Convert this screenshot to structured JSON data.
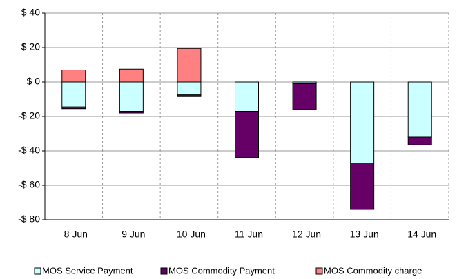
{
  "chart_data": {
    "type": "stacked_bar",
    "categories": [
      "8 Jun",
      "9 Jun",
      "10 Jun",
      "11 Jun",
      "12 Jun",
      "13 Jun",
      "14 Jun"
    ],
    "series": [
      {
        "name": "MOS Service Payment",
        "color": "#ccffff",
        "values": [
          -14.5,
          -17,
          -7.5,
          -17,
          -1,
          -47,
          -32
        ]
      },
      {
        "name": "MOS Commodity Payment",
        "color": "#660066",
        "values": [
          -1,
          -1,
          -1,
          -27,
          -15,
          -27,
          -4.5
        ]
      },
      {
        "name": "MOS Commodity charge",
        "color": "#ff8080",
        "values": [
          7,
          7.5,
          19.5,
          0,
          0,
          0,
          0
        ]
      }
    ],
    "ylim": [
      -80,
      40
    ],
    "yticks": [
      {
        "value": -80,
        "label": "-$ 80"
      },
      {
        "value": -60,
        "label": "-$ 60"
      },
      {
        "value": -40,
        "label": "-$ 40"
      },
      {
        "value": -20,
        "label": "-$ 20"
      },
      {
        "value": 0,
        "label": "$ 0"
      },
      {
        "value": 20,
        "label": "$ 20"
      },
      {
        "value": 40,
        "label": "$ 40"
      }
    ],
    "grid": true,
    "legend": "bottom"
  }
}
